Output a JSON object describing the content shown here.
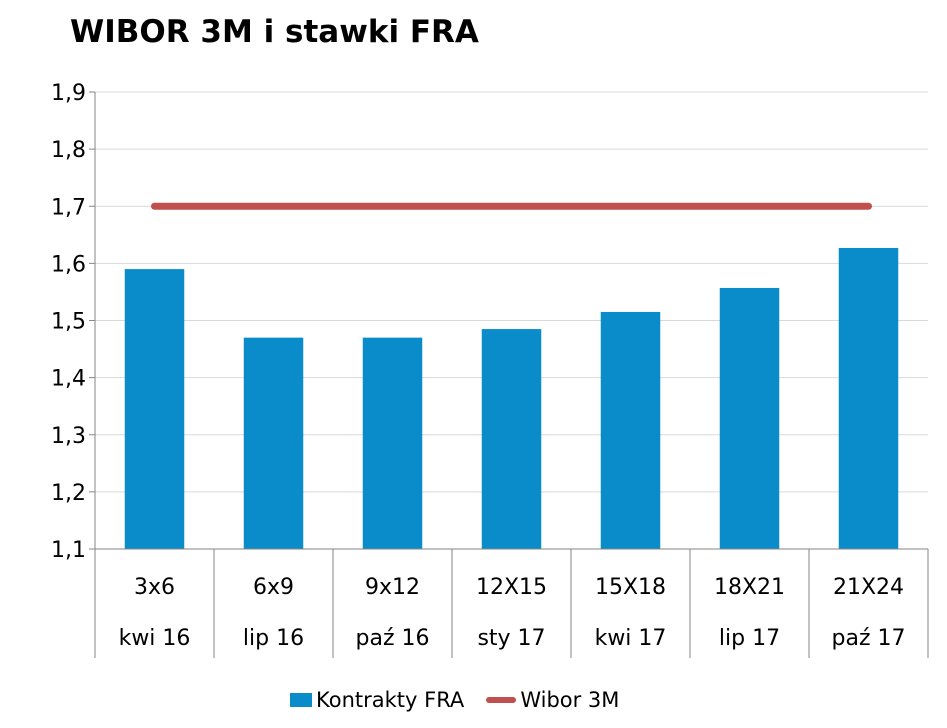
{
  "chart_data": {
    "type": "bar",
    "title": "WIBOR 3M i stawki FRA",
    "categories": [
      "3x6",
      "6x9",
      "9x12",
      "12X15",
      "15X18",
      "18X21",
      "21X24"
    ],
    "category_dates": [
      "kwi 16",
      "lip 16",
      "paź 16",
      "sty 17",
      "kwi 17",
      "lip 17",
      "paź 17"
    ],
    "series": [
      {
        "name": "Kontrakty FRA",
        "type": "bar",
        "color": "#0a8ccb",
        "values": [
          1.59,
          1.47,
          1.47,
          1.485,
          1.515,
          1.557,
          1.627
        ]
      },
      {
        "name": "Wibor 3M",
        "type": "line",
        "color": "#c0504d",
        "values": [
          1.7,
          1.7,
          1.7,
          1.7,
          1.7,
          1.7,
          1.7
        ]
      }
    ],
    "ylim": [
      1.1,
      1.9
    ],
    "yticks": [
      "1,1",
      "1,2",
      "1,3",
      "1,4",
      "1,5",
      "1,6",
      "1,7",
      "1,8",
      "1,9"
    ],
    "xlabel": "",
    "ylabel": "",
    "grid": true,
    "legend": "bottom"
  }
}
